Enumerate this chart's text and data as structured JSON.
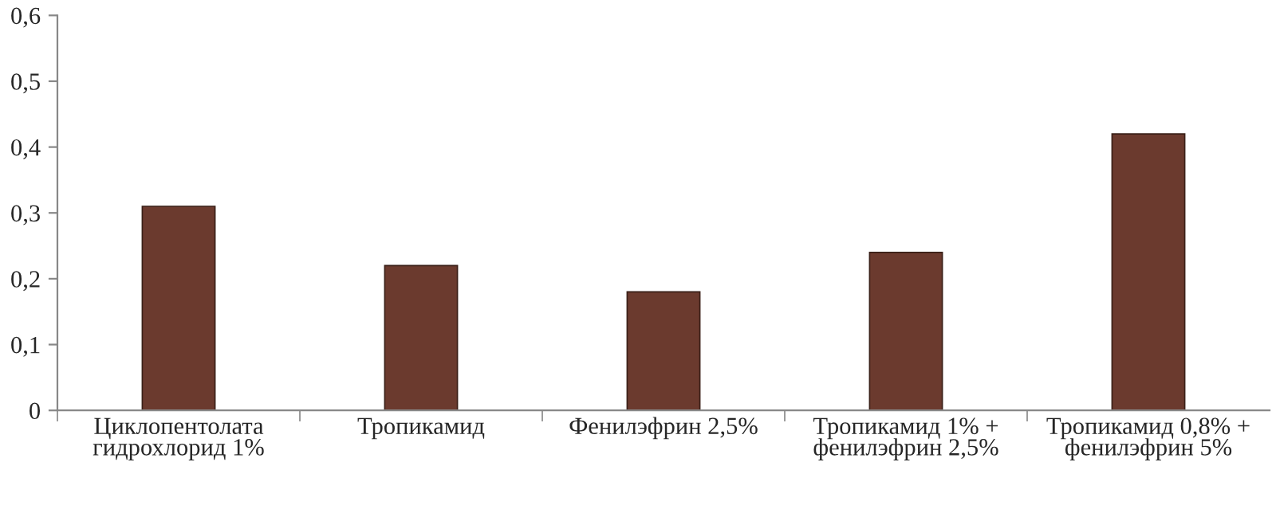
{
  "chart_data": {
    "type": "bar",
    "categories": [
      "Циклопентолата\nгидрохлорид 1%",
      "Тропикамид",
      "Фенилэфрин 2,5%",
      "Тропикамид 1% +\nфенилэфрин 2,5%",
      "Тропикамид 0,8% +\nфенилэфрин 5%"
    ],
    "values": [
      0.31,
      0.22,
      0.18,
      0.24,
      0.42
    ],
    "color": "#6b3a2e",
    "ylim": [
      0,
      0.6
    ],
    "yticks": [
      0,
      {
        "value": 0.1,
        "label": "0,1"
      },
      {
        "value": 0.2,
        "label": "0,2"
      },
      {
        "value": 0.3,
        "label": "0,3"
      },
      {
        "value": 0.4,
        "label": "0,4"
      },
      {
        "value": 0.5,
        "label": "0,5"
      },
      {
        "value": 0.6,
        "label": "0,6"
      }
    ],
    "grid": false
  }
}
